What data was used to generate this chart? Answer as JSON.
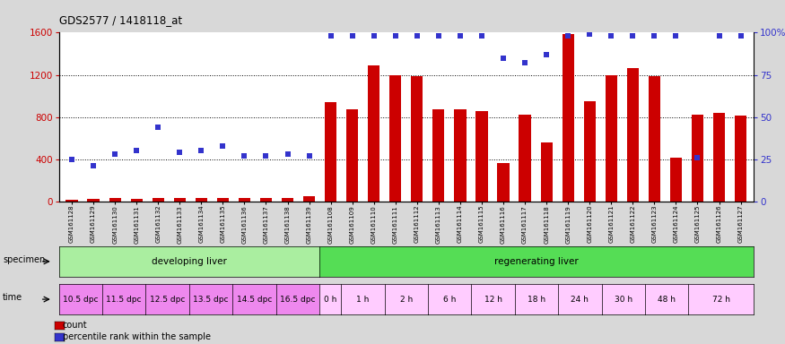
{
  "title": "GDS2577 / 1418118_at",
  "samples": [
    "GSM161128",
    "GSM161129",
    "GSM161130",
    "GSM161131",
    "GSM161132",
    "GSM161133",
    "GSM161134",
    "GSM161135",
    "GSM161136",
    "GSM161137",
    "GSM161138",
    "GSM161139",
    "GSM161108",
    "GSM161109",
    "GSM161110",
    "GSM161111",
    "GSM161112",
    "GSM161113",
    "GSM161114",
    "GSM161115",
    "GSM161116",
    "GSM161117",
    "GSM161118",
    "GSM161119",
    "GSM161120",
    "GSM161121",
    "GSM161122",
    "GSM161123",
    "GSM161124",
    "GSM161125",
    "GSM161126",
    "GSM161127"
  ],
  "counts": [
    18,
    20,
    30,
    22,
    30,
    28,
    32,
    35,
    30,
    28,
    35,
    45,
    940,
    870,
    1290,
    1200,
    1190,
    870,
    870,
    860,
    360,
    820,
    560,
    1590,
    950,
    1200,
    1260,
    1185,
    415,
    820,
    840,
    810
  ],
  "percentile_ranks": [
    25,
    21,
    28,
    30,
    44,
    29,
    30,
    33,
    27,
    27,
    28,
    27,
    98,
    98,
    98,
    98,
    98,
    98,
    98,
    98,
    85,
    82,
    87,
    98,
    99,
    98,
    98,
    98,
    98,
    26,
    98,
    98
  ],
  "ylim_left": [
    0,
    1600
  ],
  "ylim_right": [
    0,
    100
  ],
  "yticks_left": [
    0,
    400,
    800,
    1200,
    1600
  ],
  "yticks_right": [
    0,
    25,
    50,
    75,
    100
  ],
  "bar_color": "#cc0000",
  "dot_color": "#3333cc",
  "background_color": "#d8d8d8",
  "plot_bg_color": "#ffffff",
  "specimen_groups": [
    {
      "label": "developing liver",
      "start": 0,
      "end": 12,
      "color": "#aaeea0"
    },
    {
      "label": "regenerating liver",
      "start": 12,
      "end": 32,
      "color": "#55dd55"
    }
  ],
  "time_groups": [
    {
      "label": "10.5 dpc",
      "start": 0,
      "end": 2,
      "color": "#ee88ee"
    },
    {
      "label": "11.5 dpc",
      "start": 2,
      "end": 4,
      "color": "#ee88ee"
    },
    {
      "label": "12.5 dpc",
      "start": 4,
      "end": 6,
      "color": "#ee88ee"
    },
    {
      "label": "13.5 dpc",
      "start": 6,
      "end": 8,
      "color": "#ee88ee"
    },
    {
      "label": "14.5 dpc",
      "start": 8,
      "end": 10,
      "color": "#ee88ee"
    },
    {
      "label": "16.5 dpc",
      "start": 10,
      "end": 12,
      "color": "#ee88ee"
    },
    {
      "label": "0 h",
      "start": 12,
      "end": 13,
      "color": "#ffccff"
    },
    {
      "label": "1 h",
      "start": 13,
      "end": 15,
      "color": "#ffccff"
    },
    {
      "label": "2 h",
      "start": 15,
      "end": 17,
      "color": "#ffccff"
    },
    {
      "label": "6 h",
      "start": 17,
      "end": 19,
      "color": "#ffccff"
    },
    {
      "label": "12 h",
      "start": 19,
      "end": 21,
      "color": "#ffccff"
    },
    {
      "label": "18 h",
      "start": 21,
      "end": 23,
      "color": "#ffccff"
    },
    {
      "label": "24 h",
      "start": 23,
      "end": 25,
      "color": "#ffccff"
    },
    {
      "label": "30 h",
      "start": 25,
      "end": 27,
      "color": "#ffccff"
    },
    {
      "label": "48 h",
      "start": 27,
      "end": 29,
      "color": "#ffccff"
    },
    {
      "label": "72 h",
      "start": 29,
      "end": 32,
      "color": "#ffccff"
    }
  ],
  "legend_count_label": "count",
  "legend_pct_label": "percentile rank within the sample",
  "fig_width": 8.75,
  "fig_height": 3.84
}
